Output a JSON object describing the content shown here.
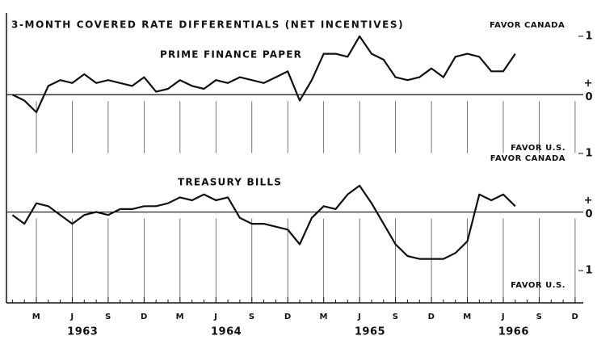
{
  "chart_data": [
    {
      "type": "line",
      "title": "3-MONTH COVERED RATE DIFFERENTIALS (NET INCENTIVES)",
      "label": "PRIME FINANCE PAPER",
      "annotations": [
        "FAVOR CANADA",
        "FAVOR U.S."
      ],
      "sign": "+",
      "color": "#111111",
      "ylim": [
        -1.0,
        1.4
      ],
      "yticks": [
        1,
        0
      ],
      "values": [
        0,
        -0.1,
        -0.3,
        0.15,
        0.25,
        0.2,
        0.35,
        0.2,
        0.25,
        0.2,
        0.15,
        0.3,
        0.05,
        0.1,
        0.25,
        0.15,
        0.1,
        0.25,
        0.2,
        0.3,
        0.25,
        0.2,
        0.3,
        0.4,
        -0.1,
        0.25,
        0.7,
        0.7,
        0.65,
        1.0,
        0.7,
        0.6,
        0.3,
        0.25,
        0.3,
        0.45,
        0.3,
        0.65,
        0.7,
        0.65,
        0.4,
        0.4,
        0.7,
        null,
        null,
        null,
        null,
        null
      ]
    },
    {
      "type": "line",
      "label": "TREASURY BILLS",
      "annotations": [
        "FAVOR CANADA",
        "FAVOR U.S."
      ],
      "sign": "+",
      "color": "#111111",
      "ylim": [
        -1.55,
        1.0
      ],
      "yticks": [
        1,
        0,
        {
          "value": -1,
          "label": "1"
        }
      ],
      "categories": [
        null,
        null,
        "M",
        null,
        null,
        "J",
        null,
        null,
        "S",
        null,
        null,
        "D",
        null,
        null,
        "M",
        null,
        null,
        "J",
        null,
        null,
        "S",
        null,
        null,
        "D",
        null,
        null,
        "M",
        null,
        null,
        "J",
        null,
        null,
        "S",
        null,
        null,
        "D",
        null,
        null,
        "M",
        null,
        null,
        "J",
        null,
        null,
        "S",
        null,
        null,
        "D"
      ],
      "years": [
        "1963",
        "1964",
        "1965",
        "1966"
      ],
      "values": [
        -0.05,
        -0.2,
        0.15,
        0.1,
        -0.05,
        -0.2,
        -0.05,
        0,
        -0.05,
        0.05,
        0.05,
        0.1,
        0.1,
        0.15,
        0.25,
        0.2,
        0.3,
        0.2,
        0.25,
        -0.1,
        -0.2,
        -0.2,
        -0.25,
        -0.3,
        -0.55,
        -0.1,
        0.1,
        0.05,
        0.3,
        0.45,
        0.15,
        -0.2,
        -0.55,
        -0.75,
        -0.8,
        -0.8,
        -0.8,
        -0.7,
        -0.5,
        0.3,
        0.2,
        0.3,
        0.1,
        null,
        null,
        null,
        null,
        null
      ]
    }
  ]
}
